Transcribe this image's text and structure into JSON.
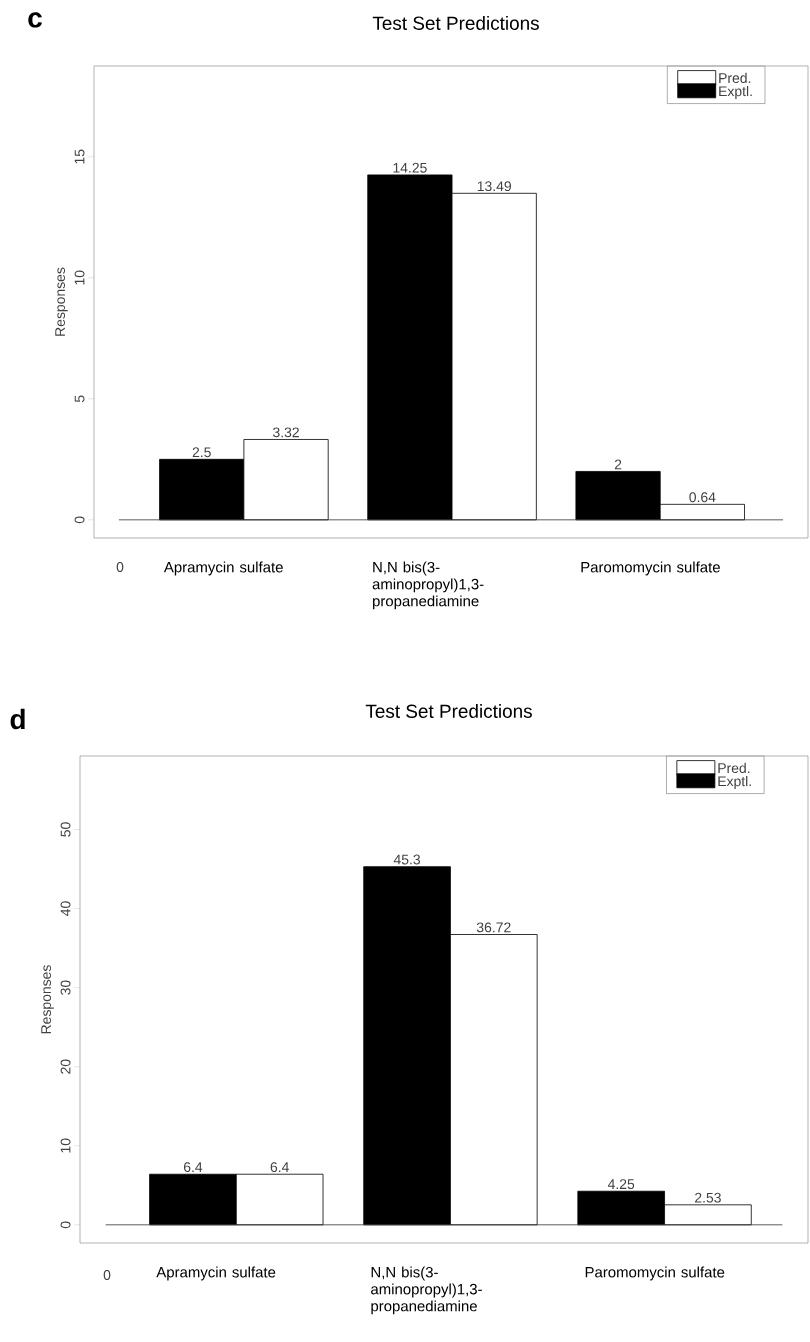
{
  "chart_data": [
    {
      "type": "bar",
      "title": "Test Set Predictions",
      "ylabel": "Responses",
      "categories": [
        "Apramycin sulfate",
        "N,N bis(3-aminopropyl)1,3-propanediamine",
        "Paromomycin sulfate"
      ],
      "series": [
        {
          "name": "Exptl.",
          "color": "#000000",
          "values": [
            2.5,
            14.25,
            2
          ]
        },
        {
          "name": "Pred.",
          "color": "#ffffff",
          "values": [
            3.32,
            13.49,
            0.64
          ]
        }
      ],
      "ylim": [
        -0.75,
        18.75
      ],
      "yticks": [
        0,
        5,
        10,
        15
      ],
      "data_labels": true,
      "legend": "top right",
      "ref_lines": [
        {
          "axis": "y",
          "value": 0
        }
      ],
      "annotations": [
        "c",
        "0"
      ]
    },
    {
      "type": "bar",
      "title": "Test Set Predictions",
      "ylabel": "Responses",
      "categories": [
        "Apramycin sulfate",
        "N,N bis(3-aminopropyl)1,3-propanediamine",
        "Paromomycin sulfate"
      ],
      "series": [
        {
          "name": "Exptl.",
          "color": "#000000",
          "values": [
            6.4,
            45.3,
            4.25
          ]
        },
        {
          "name": "Pred.",
          "color": "#ffffff",
          "values": [
            6.4,
            36.72,
            2.53
          ]
        }
      ],
      "ylim": [
        -2.3,
        59.3
      ],
      "yticks": [
        0,
        10,
        20,
        30,
        40,
        50
      ],
      "data_labels": true,
      "legend": "top right",
      "ref_lines": [
        {
          "axis": "y",
          "value": 0
        }
      ],
      "annotations": [
        "d",
        "0"
      ]
    }
  ]
}
